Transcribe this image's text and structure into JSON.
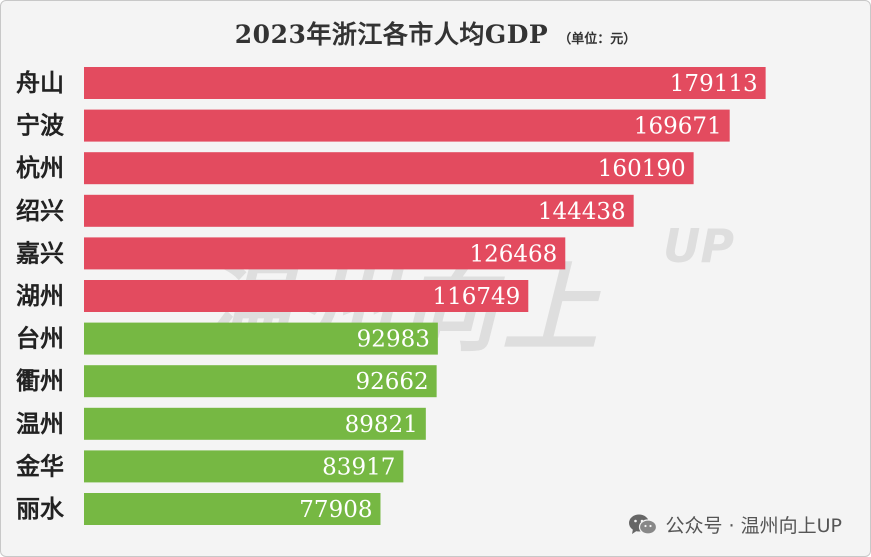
{
  "footer": {
    "icon": "wechat-icon",
    "text": "公众号 · 温州向上UP"
  },
  "watermark": {
    "text": "温州向上",
    "sub": "UP"
  },
  "colors": {
    "top_group": "#e34b5f",
    "bottom_group": "#76b843"
  },
  "chart_data": {
    "type": "bar",
    "orientation": "horizontal",
    "title": "2023年浙江各市人均GDP",
    "unit_note": "（单位：元）",
    "categories": [
      "舟山",
      "宁波",
      "杭州",
      "绍兴",
      "嘉兴",
      "湖州",
      "台州",
      "衢州",
      "温州",
      "金华",
      "丽水"
    ],
    "values": [
      179113,
      169671,
      160190,
      144438,
      126468,
      116749,
      92983,
      92662,
      89821,
      83917,
      77908
    ],
    "groups": [
      "top",
      "top",
      "top",
      "top",
      "top",
      "top",
      "bottom",
      "bottom",
      "bottom",
      "bottom",
      "bottom"
    ],
    "xlim": [
      0,
      180000
    ],
    "data_labels": true,
    "grid": false,
    "legend": false
  }
}
